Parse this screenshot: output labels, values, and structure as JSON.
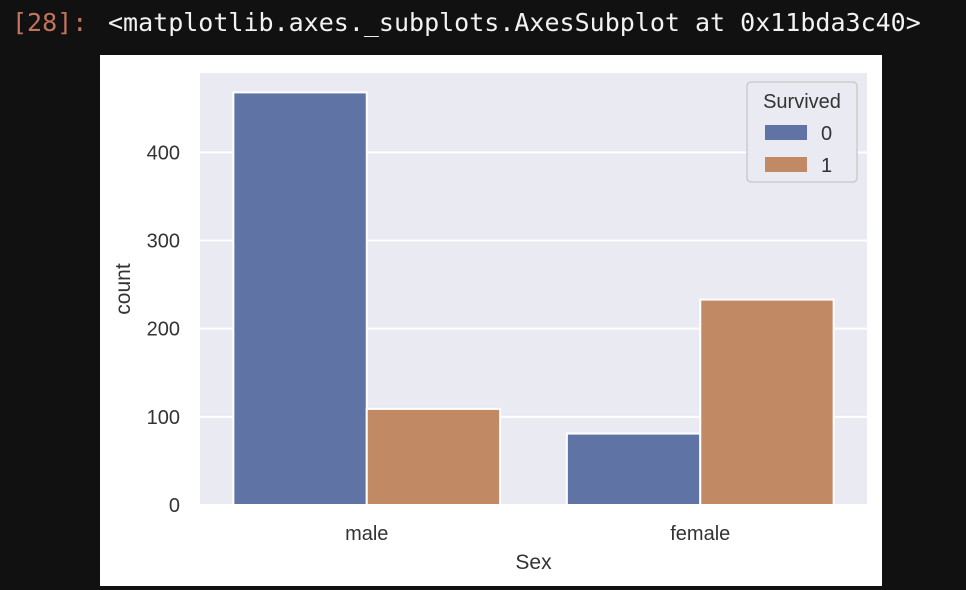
{
  "cell": {
    "prompt": "[28]:",
    "output_repr": "<matplotlib.axes._subplots.AxesSubplot at 0x11bda3c40>"
  },
  "colors": {
    "background": "#111111",
    "prompt": "#c2745c",
    "plot_bg": "#eaeaf2",
    "grid": "#ffffff",
    "series_0": "#5f74a4",
    "series_1": "#c28a64"
  },
  "chart_data": {
    "type": "bar",
    "xlabel": "Sex",
    "ylabel": "count",
    "categories": [
      "male",
      "female"
    ],
    "series": [
      {
        "name": "0",
        "values": [
          468,
          81
        ]
      },
      {
        "name": "1",
        "values": [
          109,
          233
        ]
      }
    ],
    "ylim": [
      0,
      490
    ],
    "yticks": [
      0,
      100,
      200,
      300,
      400
    ],
    "grid": true,
    "legend": {
      "title": "Survived",
      "placement": "top-right"
    }
  }
}
